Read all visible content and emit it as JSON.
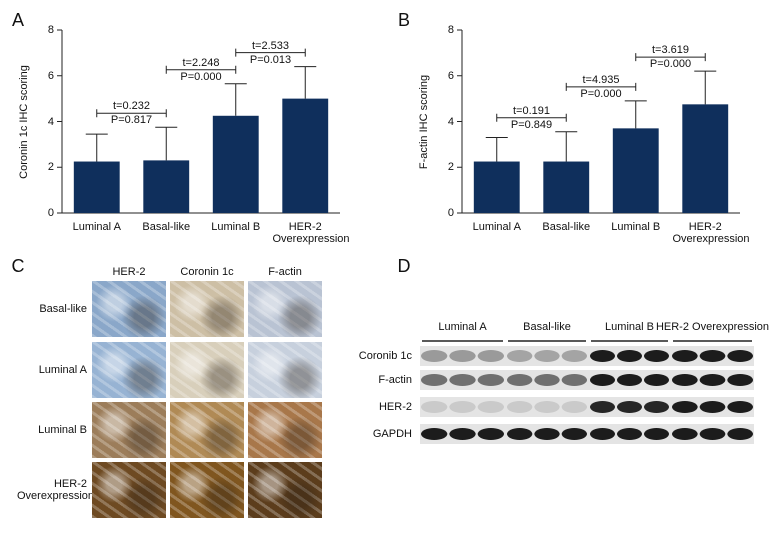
{
  "panels": [
    "A",
    "B",
    "C",
    "D"
  ],
  "chart_data": [
    {
      "type": "bar",
      "ylabel": "Coronin 1c IHC scoring",
      "categories": [
        "Luminal A",
        "Basal-like",
        "Luminal B",
        "HER-2 Overexpression"
      ],
      "series": [
        {
          "color": "#0f2f5c",
          "values": [
            2.25,
            2.3,
            4.25,
            5.0
          ],
          "errors": [
            1.2,
            1.45,
            1.4,
            1.4
          ]
        }
      ],
      "ylim": [
        0,
        8
      ],
      "yticks": [
        0,
        2,
        4,
        6,
        8
      ],
      "comparisons": [
        {
          "t": "t=0.232",
          "p": "P=0.817"
        },
        {
          "t": "t=2.248",
          "p": "P=0.000"
        },
        {
          "t": "t=2.533",
          "p": "P=0.013"
        }
      ]
    },
    {
      "type": "bar",
      "ylabel": "F-actin IHC scoring",
      "categories": [
        "Luminal A",
        "Basal-like",
        "Luminal B",
        "HER-2 Overexpression"
      ],
      "series": [
        {
          "color": "#0f2f5c",
          "values": [
            2.25,
            2.25,
            3.7,
            4.75
          ],
          "errors": [
            1.05,
            1.3,
            1.2,
            1.45
          ]
        }
      ],
      "ylim": [
        0,
        8
      ],
      "yticks": [
        0,
        2,
        4,
        6,
        8
      ],
      "comparisons": [
        {
          "t": "t=0.191",
          "p": "P=0.849"
        },
        {
          "t": "t=4.935",
          "p": "P=0.000"
        },
        {
          "t": "t=3.619",
          "p": "P=0.000"
        }
      ]
    }
  ],
  "ihc": {
    "columns": [
      "HER-2",
      "Coronin 1c",
      "F-actin"
    ],
    "rows": [
      "Basal-like",
      "Luminal A",
      "Luminal B",
      "HER-2 Overexpression"
    ]
  },
  "blot": {
    "groups": [
      "Luminal A",
      "Basal-like",
      "Luminal B",
      "HER-2 Overexpression"
    ],
    "rows": [
      "Coronib 1c",
      "F-actin",
      "HER-2",
      "GAPDH"
    ]
  }
}
